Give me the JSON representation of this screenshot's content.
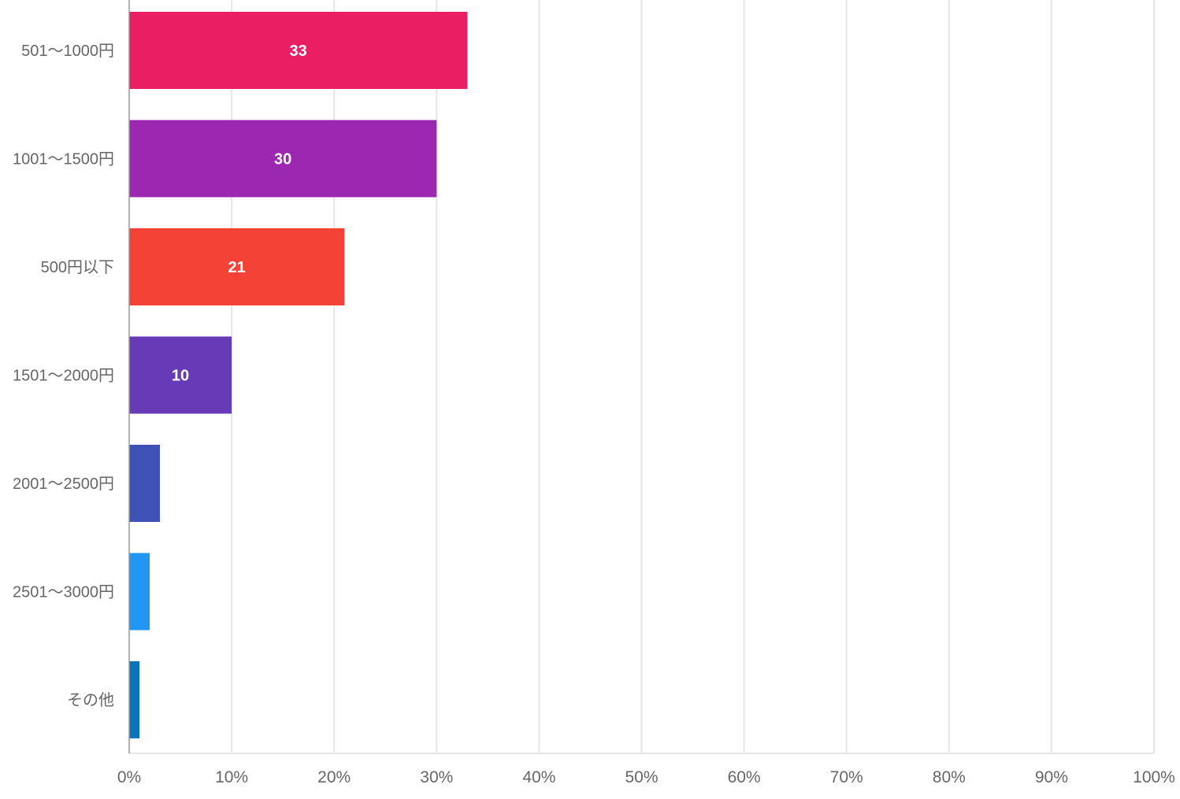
{
  "chart_data": {
    "type": "bar",
    "orientation": "horizontal",
    "categories": [
      "501〜1000円",
      "1001〜1500円",
      "500円以下",
      "1501〜2000円",
      "2001〜2500円",
      "2501〜3000円",
      "その他"
    ],
    "values": [
      33,
      30,
      21,
      10,
      3,
      2,
      1
    ],
    "value_labels": [
      "33",
      "30",
      "21",
      "10",
      "",
      "",
      ""
    ],
    "colors": [
      "#e91e63",
      "#9c27b0",
      "#f44336",
      "#673ab7",
      "#3f51b5",
      "#2196f3",
      "#0a74ba"
    ],
    "xlim": [
      0,
      100
    ],
    "x_ticks": [
      0,
      10,
      20,
      30,
      40,
      50,
      60,
      70,
      80,
      90,
      100
    ],
    "x_tick_labels": [
      "0%",
      "10%",
      "20%",
      "30%",
      "40%",
      "50%",
      "60%",
      "70%",
      "80%",
      "90%",
      "100%"
    ],
    "grid": true,
    "legend": "none"
  }
}
